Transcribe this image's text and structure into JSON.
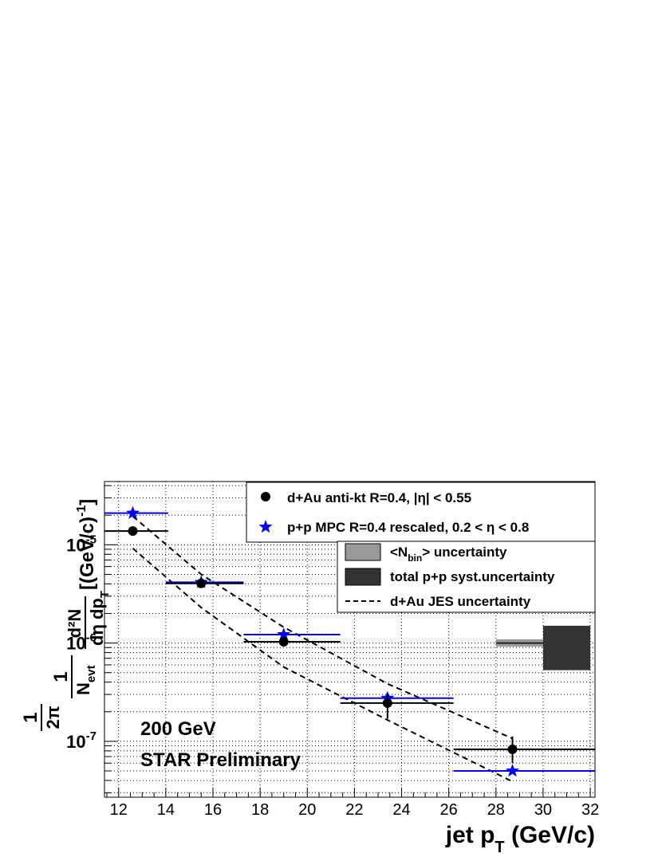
{
  "chart_data": {
    "type": "scatter",
    "x_axis": {
      "label": "jet p",
      "label_sub": "T",
      "label_unit": " (GeV/c)",
      "range": [
        11.4,
        32.2
      ],
      "ticks": [
        12,
        14,
        16,
        18,
        20,
        22,
        24,
        26,
        28,
        30,
        32
      ],
      "scale": "linear"
    },
    "y_axis": {
      "scale": "log",
      "range": [
        2.7e-08,
        4.4e-05
      ],
      "ticks": [
        1e-07,
        1e-06,
        1e-05
      ],
      "tick_labels": [
        {
          "base": "10",
          "exp": "-7"
        },
        {
          "base": "10",
          "exp": "-6"
        },
        {
          "base": "10",
          "exp": "-5"
        }
      ],
      "label_parts": {
        "one": "1",
        "two_pi": "2π",
        "n_evt": "N",
        "n_evt_sub": "evt",
        "num": "d²N",
        "den": "dη dp",
        "den_sub": "T",
        "units": "[(GeV/c)",
        "units_exp": "-1",
        "units_close": "]"
      }
    },
    "grid": true,
    "legend_placement": "top-right",
    "series": [
      {
        "name": "d+Au anti-kt R=0.4, |η| < 0.55",
        "color": "#000000",
        "marker": "circle",
        "points": [
          {
            "x": 12.6,
            "y": 1.38e-05,
            "xlo": 11.4,
            "xhi": 14.1
          },
          {
            "x": 15.5,
            "y": 4.05e-06,
            "xlo": 14.0,
            "xhi": 17.3
          },
          {
            "x": 19.0,
            "y": 1.03e-06,
            "xlo": 17.3,
            "xhi": 21.4
          },
          {
            "x": 23.4,
            "y": 2.45e-07,
            "xlo": 21.4,
            "xhi": 26.2,
            "ylo": 1.7e-07,
            "yhi": 3e-07
          },
          {
            "x": 28.7,
            "y": 8.3e-08,
            "xlo": 26.2,
            "xhi": 32.2,
            "ylo": 6e-08,
            "yhi": 1.12e-07
          }
        ]
      },
      {
        "name": "p+p MPC R=0.4 rescaled, 0.2 < η < 0.8",
        "color": "#0000ff",
        "marker": "star",
        "points": [
          {
            "x": 12.6,
            "y": 2.1e-05,
            "xlo": 11.4,
            "xhi": 14.1
          },
          {
            "x": 15.5,
            "y": 4.15e-06,
            "xlo": 14.0,
            "xhi": 17.3
          },
          {
            "x": 19.0,
            "y": 1.22e-06,
            "xlo": 17.3,
            "xhi": 21.4
          },
          {
            "x": 23.4,
            "y": 2.75e-07,
            "xlo": 21.4,
            "xhi": 26.2
          },
          {
            "x": 28.7,
            "y": 5e-08,
            "xlo": 26.2,
            "xhi": 32.2
          }
        ]
      },
      {
        "name": "d+Au JES uncertainty",
        "color": "#000000",
        "style": "dashed",
        "upper": [
          {
            "x": 12.6,
            "y": 1.95e-05
          },
          {
            "x": 15.5,
            "y": 5e-06
          },
          {
            "x": 19.0,
            "y": 1.45e-06
          },
          {
            "x": 23.4,
            "y": 3.85e-07
          },
          {
            "x": 28.7,
            "y": 1.07e-07
          }
        ],
        "lower": [
          {
            "x": 12.6,
            "y": 9.2e-06
          },
          {
            "x": 15.5,
            "y": 2.3e-06
          },
          {
            "x": 19.0,
            "y": 5.7e-07
          },
          {
            "x": 23.4,
            "y": 1.65e-07
          },
          {
            "x": 28.7,
            "y": 3.9e-08
          }
        ]
      }
    ],
    "uncertainty_boxes": [
      {
        "name": "<N_bin> uncertainty",
        "color": "#999999",
        "x0": 28.0,
        "x1": 32.0,
        "y0": 9.2e-07,
        "y1": 1.09e-06,
        "center": 1e-06
      },
      {
        "name": "total p+p syst.uncertainty",
        "color": "#333333",
        "x0": 30.0,
        "x1": 32.0,
        "y0": 5.3e-07,
        "y1": 1.5e-06
      }
    ],
    "legend": {
      "entries": [
        {
          "text": "d+Au anti-kt R=0.4, |η| < 0.55",
          "symbol": "circle"
        },
        {
          "text": "p+p MPC R=0.4 rescaled, 0.2 < η < 0.8",
          "symbol": "star"
        }
      ],
      "entries2": [
        {
          "pre": "<N",
          "sub": "bin",
          "post": "> uncertainty",
          "symbol": "box-light"
        },
        {
          "text": "total p+p syst.uncertainty",
          "symbol": "box-dark"
        },
        {
          "text": "d+Au JES uncertainty",
          "symbol": "dashed"
        }
      ]
    },
    "annotations": [
      "200 GeV",
      "STAR Preliminary"
    ]
  }
}
